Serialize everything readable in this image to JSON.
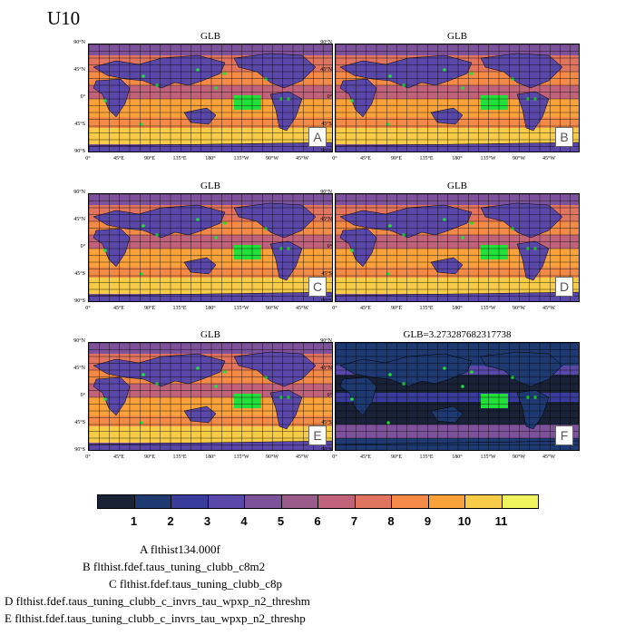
{
  "title": "U10",
  "panels": [
    {
      "id": "A",
      "title": "GLB",
      "label": "A"
    },
    {
      "id": "B",
      "title": "GLB",
      "label": "B"
    },
    {
      "id": "C",
      "title": "GLB",
      "label": "C"
    },
    {
      "id": "D",
      "title": "GLB",
      "label": "D"
    },
    {
      "id": "E",
      "title": "GLB",
      "label": "E"
    },
    {
      "id": "F",
      "title": "GLB=3.273287682317738",
      "label": "F"
    }
  ],
  "lat_labels": [
    "90°N",
    "45°N",
    "0°",
    "45°S",
    "90°S"
  ],
  "lon_labels": [
    "0°",
    "45°E",
    "90°E",
    "135°E",
    "180°",
    "135°W",
    "90°W",
    "45°W"
  ],
  "colorbar": {
    "colors": [
      "#1a2238",
      "#1f3a70",
      "#3a3c9c",
      "#5a48a8",
      "#7e529a",
      "#9a5a8a",
      "#c0637a",
      "#e0745e",
      "#f38a48",
      "#f9a23c",
      "#f6cb48",
      "#eef35e"
    ],
    "ticks": [
      "1",
      "2",
      "3",
      "4",
      "5",
      "6",
      "7",
      "8",
      "9",
      "10",
      "11"
    ]
  },
  "legend": [
    "A  flthist134.000f",
    "B  flthist.fdef.taus_tuning_clubb_c8m2",
    "C  flthist.fdef.taus_tuning_clubb_c8p",
    "D  flthist.fdef.taus_tuning_clubb_c_invrs_tau_wpxp_n2_threshm",
    "E  flthist.fdef.taus_tuning_clubb_c_invrs_tau_wpxp_n2_threshp"
  ],
  "chart_data": {
    "type": "heatmap",
    "variable": "U10",
    "panel_titles": [
      "GLB",
      "GLB",
      "GLB",
      "GLB",
      "GLB",
      "GLB=3.273287682317738"
    ],
    "colorbar_ticks": [
      1,
      2,
      3,
      4,
      5,
      6,
      7,
      8,
      9,
      10,
      11
    ]
  }
}
